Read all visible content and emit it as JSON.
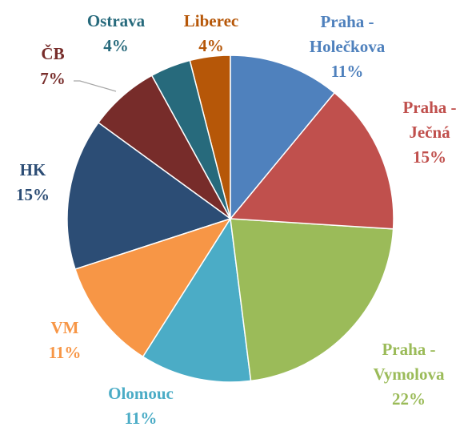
{
  "chart_data": {
    "type": "pie",
    "categories": [
      "Praha - Holečkova",
      "Praha - Ječná",
      "Praha - Vymolova",
      "Olomouc",
      "VM",
      "HK",
      "ČB",
      "Ostrava",
      "Liberec"
    ],
    "values": [
      11,
      15,
      22,
      11,
      11,
      15,
      7,
      4,
      4
    ],
    "value_labels": [
      "11%",
      "15%",
      "22%",
      "11%",
      "11%",
      "15%",
      "7%",
      "4%",
      "4%"
    ],
    "colors": [
      "#4f81bd",
      "#c0504d",
      "#9bbb59",
      "#4bacc6",
      "#f79646",
      "#2c4d75",
      "#772c2a",
      "#276a7c",
      "#b65708"
    ]
  }
}
